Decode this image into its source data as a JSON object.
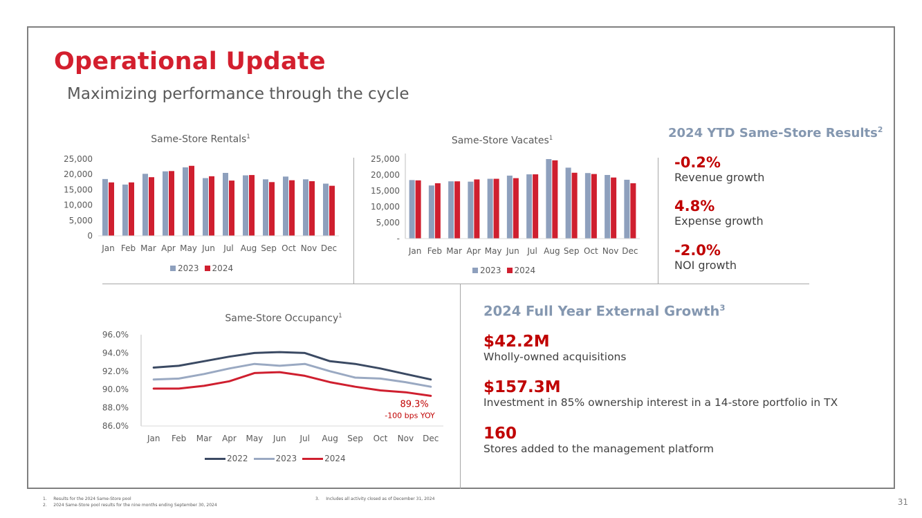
{
  "title": "Operational Update",
  "subtitle": "Maximizing performance through the cycle",
  "colors": {
    "accent_red": "#d31f2e",
    "series_2023_bar": "#8ea0bd",
    "series_2024": "#cf1f2f",
    "series_2022_line": "#3b4a63",
    "series_2023_line": "#9aa9c2",
    "section_head": "#8497b0"
  },
  "chart_data": [
    {
      "type": "bar",
      "title": "Same-Store Rentals",
      "title_sup": "1",
      "categories": [
        "Jan",
        "Feb",
        "Mar",
        "Apr",
        "May",
        "Jun",
        "Jul",
        "Aug",
        "Sep",
        "Oct",
        "Nov",
        "Dec"
      ],
      "series": [
        {
          "name": "2023",
          "values": [
            18500,
            16700,
            20200,
            21000,
            22300,
            18800,
            20500,
            19700,
            18400,
            19300,
            18400,
            17000
          ]
        },
        {
          "name": "2024",
          "values": [
            17400,
            17400,
            19100,
            21100,
            22800,
            19400,
            18000,
            19800,
            17500,
            18100,
            17800,
            16300
          ]
        }
      ],
      "ylim": [
        0,
        25000
      ],
      "yticks": [
        "25,000",
        "20,000",
        "15,000",
        "10,000",
        "5,000",
        "0"
      ],
      "legend": "bottom"
    },
    {
      "type": "bar",
      "title": "Same-Store Vacates",
      "title_sup": "1",
      "categories": [
        "Jan",
        "Feb",
        "Mar",
        "Apr",
        "May",
        "Jun",
        "Jul",
        "Aug",
        "Sep",
        "Oct",
        "Nov",
        "Dec"
      ],
      "series": [
        {
          "name": "2023",
          "values": [
            18400,
            16700,
            18000,
            17900,
            18800,
            19800,
            20200,
            25000,
            22300,
            20600,
            20000,
            18500
          ]
        },
        {
          "name": "2024",
          "values": [
            18300,
            17400,
            18000,
            18600,
            18800,
            19000,
            20200,
            24600,
            20700,
            20300,
            19200,
            17400
          ]
        }
      ],
      "ylim": [
        0,
        25000
      ],
      "yticks": [
        "25,000",
        "20,000",
        "15,000",
        "10,000",
        "5,000",
        "-"
      ],
      "legend": "bottom"
    },
    {
      "type": "line",
      "title": "Same-Store Occupancy",
      "title_sup": "1",
      "categories": [
        "Jan",
        "Feb",
        "Mar",
        "Apr",
        "May",
        "Jun",
        "Jul",
        "Aug",
        "Sep",
        "Oct",
        "Nov",
        "Dec"
      ],
      "series": [
        {
          "name": "2022",
          "values": [
            92.4,
            92.6,
            93.1,
            93.6,
            94.0,
            94.1,
            94.0,
            93.1,
            92.8,
            92.3,
            91.7,
            91.1
          ]
        },
        {
          "name": "2023",
          "values": [
            91.1,
            91.2,
            91.7,
            92.3,
            92.8,
            92.6,
            92.8,
            92.0,
            91.3,
            91.2,
            90.8,
            90.3
          ]
        },
        {
          "name": "2024",
          "values": [
            90.1,
            90.1,
            90.4,
            90.9,
            91.8,
            91.9,
            91.5,
            90.8,
            90.3,
            89.9,
            89.7,
            89.3
          ]
        }
      ],
      "ylim": [
        86.0,
        96.0
      ],
      "yticks": [
        "96.0%",
        "94.0%",
        "92.0%",
        "90.0%",
        "88.0%",
        "86.0%"
      ],
      "annotation": {
        "value": "89.3%",
        "note": "-100 bps YOY"
      },
      "legend": "bottom"
    }
  ],
  "ytd": {
    "heading": "2024 YTD Same-Store Results",
    "heading_sup": "2",
    "metrics": [
      {
        "value": "-0.2%",
        "label": "Revenue growth"
      },
      {
        "value": "4.8%",
        "label": "Expense growth"
      },
      {
        "value": "-2.0%",
        "label": "NOI growth"
      }
    ]
  },
  "external": {
    "heading": "2024 Full Year External Growth",
    "heading_sup": "3",
    "metrics": [
      {
        "value": "$42.2M",
        "label": "Wholly-owned acquisitions"
      },
      {
        "value": "$157.3M",
        "label": "Investment in 85% ownership interest in a 14-store portfolio in TX"
      },
      {
        "value": "160",
        "label": "Stores added to the management platform"
      }
    ]
  },
  "footnotes": {
    "n1": "1.     Results for the 2024 Same-Store pool",
    "n2": "2.     2024 Same-Store pool results for the nine months ending September 30, 2024",
    "n3": "3.     Includes all activity closed as of December 31, 2024"
  },
  "page_number": "31"
}
